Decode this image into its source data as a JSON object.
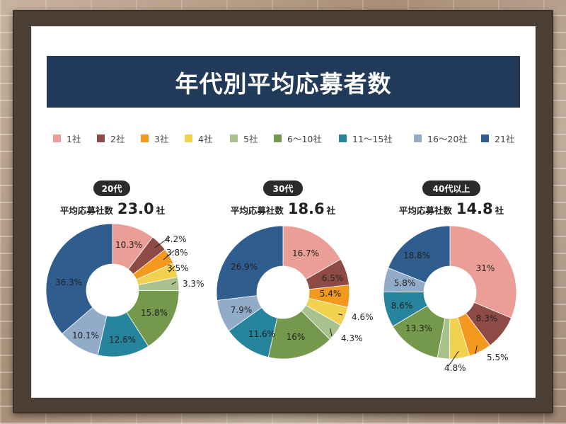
{
  "title": "年代別平均応募者数",
  "legend": [
    {
      "label": "1社",
      "color": "#eb9e97"
    },
    {
      "label": "2社",
      "color": "#8e4b45"
    },
    {
      "label": "3社",
      "color": "#f39a1e"
    },
    {
      "label": "4社",
      "color": "#f2d14e"
    },
    {
      "label": "5社",
      "color": "#a9c28d"
    },
    {
      "label": "6～10社",
      "color": "#74994c"
    },
    {
      "label": "11～15社",
      "color": "#27849d"
    },
    {
      "label": "16～20社",
      "color": "#91abc8"
    },
    {
      "label": "21社",
      "color": "#2f5d8e"
    }
  ],
  "avg_label": "平均応募社数",
  "unit": "社",
  "chart_data": [
    {
      "type": "pie",
      "title": "20代",
      "average": "23.0",
      "categories": [
        "1社",
        "2社",
        "3社",
        "4社",
        "5社",
        "6～10社",
        "11～15社",
        "16～20社",
        "21社"
      ],
      "values": [
        10.3,
        4.2,
        3.8,
        3.5,
        3.3,
        15.8,
        12.6,
        10.1,
        36.3
      ],
      "labels": [
        "10.3%",
        "4.2%",
        "3.8%",
        "3.5%",
        "3.3%",
        "15.8%",
        "12.6%",
        "10.1%",
        "36.3%"
      ]
    },
    {
      "type": "pie",
      "title": "30代",
      "average": "18.6",
      "categories": [
        "1社",
        "2社",
        "3社",
        "4社",
        "5社",
        "6～10社",
        "11～15社",
        "16～20社",
        "21社"
      ],
      "values": [
        16.7,
        6.5,
        5.4,
        4.6,
        4.3,
        16,
        11.6,
        7.9,
        26.9
      ],
      "labels": [
        "16.7%",
        "6.5%",
        "5.4%",
        "4.6%",
        "4.3%",
        "16%",
        "11.6%",
        "7.9%",
        "26.9%"
      ]
    },
    {
      "type": "pie",
      "title": "40代以上",
      "average": "14.8",
      "categories": [
        "1社",
        "2社",
        "3社",
        "4社",
        "5社",
        "6～10社",
        "11～15社",
        "16～20社",
        "21社"
      ],
      "values": [
        31,
        8.3,
        5.5,
        4.8,
        2.9,
        13.3,
        8.6,
        5.8,
        18.8
      ],
      "labels": [
        "31%",
        "8.3%",
        "5.5%",
        "4.8%",
        "",
        "13.3%",
        "8.6%",
        "5.8%",
        "18.8%"
      ]
    }
  ]
}
